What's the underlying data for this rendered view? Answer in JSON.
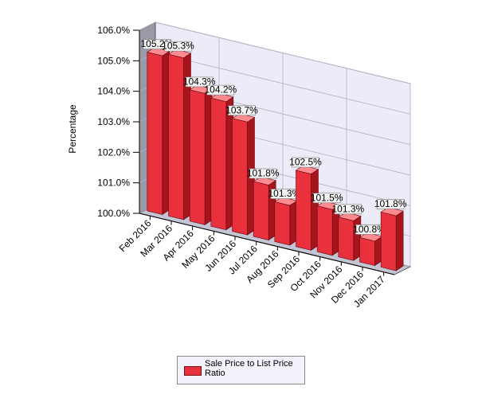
{
  "chart_data": {
    "type": "bar3d",
    "y_label": "Percentage",
    "categories": [
      "Feb 2016",
      "Mar 2016",
      "Apr 2016",
      "May 2016",
      "Jun 2016",
      "Jul 2016",
      "Aug 2016",
      "Sep 2016",
      "Oct 2016",
      "Nov 2016",
      "Dec 2016",
      "Jan 2017"
    ],
    "series": [
      {
        "name": "Sale Price to List Price Ratio",
        "color": "#e8313c",
        "values": [
          105.2,
          105.3,
          104.3,
          104.2,
          103.7,
          101.8,
          101.3,
          102.5,
          101.5,
          101.3,
          100.8,
          101.8
        ],
        "value_labels": [
          "105.2%",
          "105.3%",
          "104.3%",
          "104.2%",
          "103.7%",
          "101.8%",
          "101.3%",
          "102.5%",
          "101.5%",
          "101.3%",
          "100.8%",
          "101.8%"
        ]
      }
    ],
    "ylim": [
      100,
      106
    ],
    "yticks": [
      {
        "value": 100,
        "label": "100.0%"
      },
      {
        "value": 101,
        "label": "101.0%"
      },
      {
        "value": 102,
        "label": "102.0%"
      },
      {
        "value": 103,
        "label": "103.0%"
      },
      {
        "value": 104,
        "label": "104.0%"
      },
      {
        "value": 105,
        "label": "105.0%"
      },
      {
        "value": 106,
        "label": "106.0%"
      }
    ],
    "grid": true
  }
}
